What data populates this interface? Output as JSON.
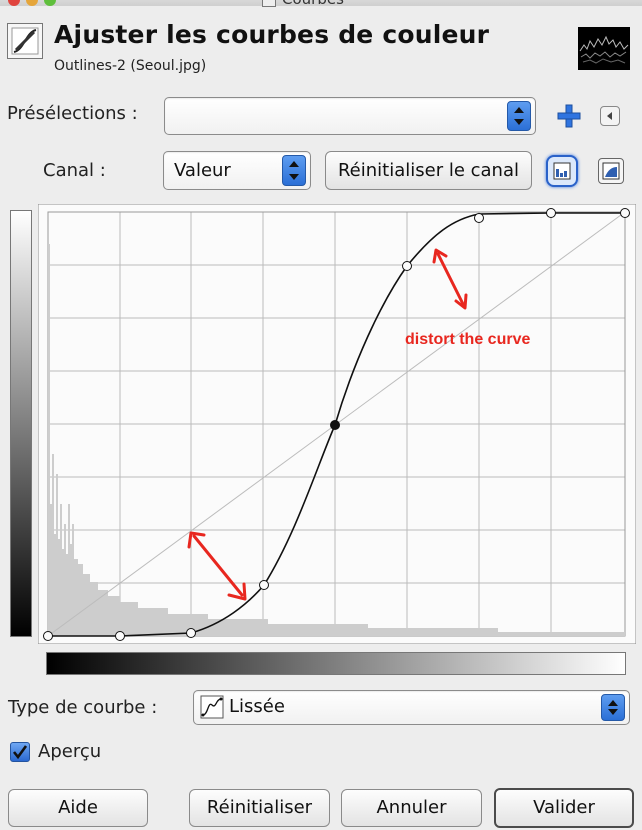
{
  "window": {
    "title": "Courbes"
  },
  "header": {
    "title": "Ajuster les courbes de couleur",
    "subtitle": "Outlines-2 (Seoul.jpg)"
  },
  "presets": {
    "label": "Présélections :",
    "value": ""
  },
  "channel": {
    "label": "Canal :",
    "value": "Valeur",
    "reset_label": "Réinitialiser le canal"
  },
  "annotation": {
    "text": "distort the curve",
    "color": "#e8271f"
  },
  "curve_type": {
    "label": "Type de courbe :",
    "value": "Lissée"
  },
  "preview": {
    "label": "Aperçu",
    "checked": true
  },
  "buttons": {
    "help": "Aide",
    "reset": "Réinitialiser",
    "cancel": "Annuler",
    "ok": "Valider"
  },
  "colors": {
    "accent": "#2f74e0",
    "arrow": "#e8271f",
    "background": "#ededed"
  }
}
